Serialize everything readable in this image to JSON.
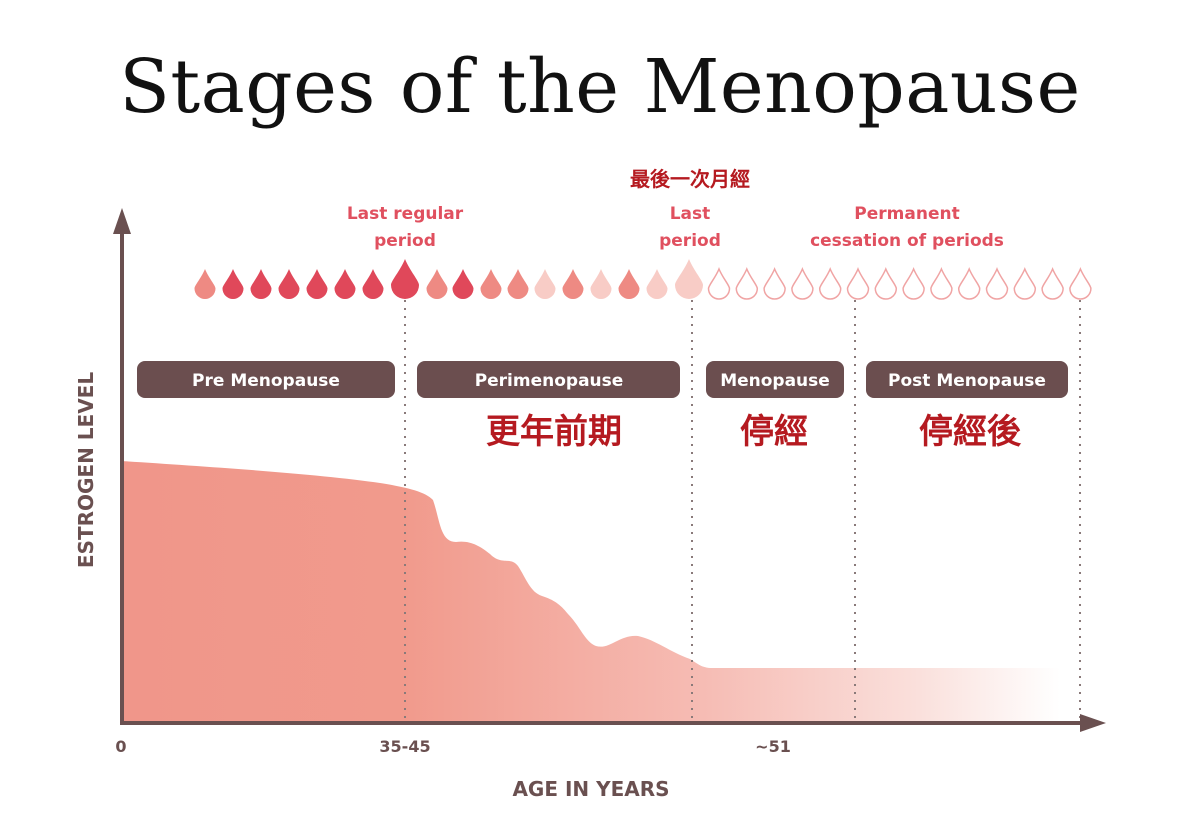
{
  "title": "Stages of the Menopause",
  "chart_data": {
    "type": "area",
    "title": "Stages of the Menopause",
    "xlabel": "AGE IN YEARS",
    "ylabel": "ESTROGEN LEVEL",
    "x_ticks": [
      "0",
      "35-45",
      "~51"
    ],
    "stages": [
      {
        "label": "Pre Menopause",
        "cn": ""
      },
      {
        "label": "Perimenopause",
        "cn": "更年前期"
      },
      {
        "label": "Menopause",
        "cn": "停經"
      },
      {
        "label": "Post Menopause",
        "cn": "停經後"
      }
    ],
    "annotations": {
      "last_regular_period": [
        "Last regular",
        "period"
      ],
      "last_period": [
        "Last",
        "period"
      ],
      "last_period_cn": "最後一次月經",
      "permanent_cessation": [
        "Permanent",
        "cessation of periods"
      ]
    },
    "estrogen_level": {
      "premenopause_start": 0.85,
      "at_35_45": 0.76,
      "at_51": 0.18,
      "postmenopause": 0.18
    },
    "period_drops": {
      "regular_count": 8,
      "irregular_count": 10,
      "absent_count": 14
    }
  },
  "colors": {
    "axis": "#6a5050",
    "area": "#f19a8c",
    "drop_dark": "#e0485a",
    "drop_mid": "#ee8a83",
    "drop_light": "#f8ccc6",
    "drop_outline": "#f0a4a4",
    "stage_bg": "#6b4e4f",
    "annotation": "#e0505f",
    "cn_text": "#b51a20"
  }
}
